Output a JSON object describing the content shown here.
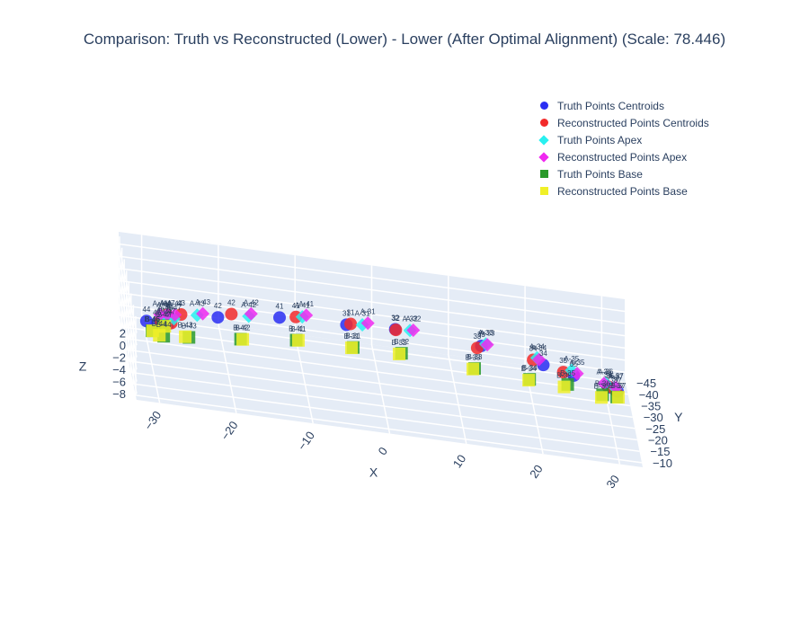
{
  "title": "Comparison: Truth vs Reconstructed (Lower) - Lower (After Optimal Alignment) (Scale: 78.446)",
  "chart_data": {
    "type": "scatter3d",
    "axes": {
      "x": {
        "label": "X",
        "ticks": [
          "−30",
          "−20",
          "−10",
          "0",
          "10",
          "20",
          "30"
        ]
      },
      "y": {
        "label": "Y",
        "ticks": [
          "−10",
          "−15",
          "−20",
          "−25",
          "−30",
          "−35",
          "−40",
          "−45"
        ]
      },
      "z": {
        "label": "Z",
        "ticks": [
          "2",
          "0",
          "−2",
          "−4",
          "−6",
          "−8"
        ]
      }
    },
    "grid": true,
    "legend_position": "top-right",
    "series": [
      {
        "name": "Truth Points Centroids",
        "marker": "circle",
        "color": "#2a2ef2",
        "points": [
          {
            "label": "47",
            "x": -28.6,
            "y": -12.6,
            "z": 2.5
          },
          {
            "label": "46",
            "x": -29.9,
            "y": -15.5,
            "z": 1.2
          },
          {
            "label": "44",
            "x": -31.0,
            "y": -20.0,
            "z": -0.2
          },
          {
            "label": "43",
            "x": -27.6,
            "y": -26.4,
            "z": -1.5
          },
          {
            "label": "42",
            "x": -21.0,
            "y": -31.4,
            "z": -2.2
          },
          {
            "label": "41",
            "x": -12.7,
            "y": -35.6,
            "z": -2.4
          },
          {
            "label": "31",
            "x": -3.9,
            "y": -36.9,
            "z": -2.6
          },
          {
            "label": "32",
            "x": 2.5,
            "y": -37.5,
            "z": -2.5
          },
          {
            "label": "33",
            "x": 13.5,
            "y": -33.8,
            "z": -2.0
          },
          {
            "label": "34",
            "x": 21.2,
            "y": -27.3,
            "z": -1.4
          },
          {
            "label": "35",
            "x": 24.9,
            "y": -22.7,
            "z": -0.8
          },
          {
            "label": "36",
            "x": 29.2,
            "y": -15.7,
            "z": 0.6
          },
          {
            "label": "37",
            "x": 30.0,
            "y": -12.6,
            "z": 1.2
          }
        ]
      },
      {
        "name": "Reconstructed Points Centroids",
        "marker": "circle",
        "color": "#f22a2a",
        "points": [
          {
            "label": "47",
            "x": -28.2,
            "y": -12.6,
            "z": 2.7
          },
          {
            "label": "46",
            "x": -29.4,
            "y": -15.8,
            "z": 1.6
          },
          {
            "label": "44",
            "x": -28.2,
            "y": -22.4,
            "z": 0.4
          },
          {
            "label": "43",
            "x": -26.0,
            "y": -28.0,
            "z": -1.3
          },
          {
            "label": "42",
            "x": -19.1,
            "y": -33.7,
            "z": -2.2
          },
          {
            "label": "41",
            "x": -10.5,
            "y": -36.8,
            "z": -2.4
          },
          {
            "label": "31",
            "x": -3.3,
            "y": -37.8,
            "z": -2.7
          },
          {
            "label": "32",
            "x": 2.6,
            "y": -37.8,
            "z": -2.7
          },
          {
            "label": "33",
            "x": 13.0,
            "y": -34.3,
            "z": -2.6
          },
          {
            "label": "34",
            "x": 20.0,
            "y": -29.5,
            "z": -1.6
          },
          {
            "label": "35",
            "x": 23.6,
            "y": -23.9,
            "z": -0.9
          },
          {
            "label": "36",
            "x": 29.0,
            "y": -16.5,
            "z": 0.4
          },
          {
            "label": "37",
            "x": 29.8,
            "y": -13.3,
            "z": 1.1
          }
        ]
      },
      {
        "name": "Truth Points Apex",
        "marker": "diamond",
        "color": "#28f0f0",
        "points": [
          {
            "label": "A-47",
            "x": -27.9,
            "y": -12.2,
            "z": 3.6
          },
          {
            "label": "A-46",
            "x": -28.9,
            "y": -14.2,
            "z": 2.6
          },
          {
            "label": "A-44",
            "x": -28.6,
            "y": -21.0,
            "z": 0.6
          },
          {
            "label": "A-43",
            "x": -24.0,
            "y": -26.5,
            "z": -0.5
          },
          {
            "label": "A-42",
            "x": -17.0,
            "y": -31.0,
            "z": -1.2
          },
          {
            "label": "A-41",
            "x": -9.8,
            "y": -34.5,
            "z": -1.4
          },
          {
            "label": "A-31",
            "x": -1.9,
            "y": -35.6,
            "z": -1.8
          },
          {
            "label": "A-32",
            "x": 4.3,
            "y": -35.4,
            "z": -1.6
          },
          {
            "label": "A-33",
            "x": 13.9,
            "y": -30.8,
            "z": -0.5
          },
          {
            "label": "A-34",
            "x": 20.3,
            "y": -26.0,
            "z": 0.1
          },
          {
            "label": "A-35",
            "x": 24.5,
            "y": -21.1,
            "z": 0.6
          },
          {
            "label": "A-36",
            "x": 28.6,
            "y": -15.1,
            "z": 1.4
          },
          {
            "label": "A-37",
            "x": 29.7,
            "y": -12.0,
            "z": 1.9
          }
        ]
      },
      {
        "name": "Reconstructed Points Apex",
        "marker": "diamond",
        "color": "#f028f0",
        "points": [
          {
            "label": "A-47",
            "x": -28.7,
            "y": -13.0,
            "z": 3.9
          },
          {
            "label": "A-46",
            "x": -29.5,
            "y": -15.4,
            "z": 2.8
          },
          {
            "label": "A-44",
            "x": -27.2,
            "y": -21.5,
            "z": 0.9
          },
          {
            "label": "A-43",
            "x": -23.2,
            "y": -27.5,
            "z": -0.5
          },
          {
            "label": "A-42",
            "x": -16.6,
            "y": -32.5,
            "z": -1.3
          },
          {
            "label": "A-41",
            "x": -9.2,
            "y": -36.0,
            "z": -1.6
          },
          {
            "label": "A-31",
            "x": -1.1,
            "y": -37.0,
            "z": -1.9
          },
          {
            "label": "A-32",
            "x": 4.8,
            "y": -36.5,
            "z": -1.9
          },
          {
            "label": "A-33",
            "x": 14.2,
            "y": -32.5,
            "z": -1.2
          },
          {
            "label": "A-34",
            "x": 20.6,
            "y": -26.5,
            "z": -0.3
          },
          {
            "label": "A-35",
            "x": 25.2,
            "y": -20.5,
            "z": 0.4
          },
          {
            "label": "A-36",
            "x": 28.4,
            "y": -15.5,
            "z": 1.2
          },
          {
            "label": "A-37",
            "x": 29.8,
            "y": -12.8,
            "z": 1.8
          }
        ]
      },
      {
        "name": "Truth Points Base",
        "marker": "square",
        "color": "#2a9a2a",
        "points": [
          {
            "label": "B-47",
            "x": -29.2,
            "y": -13.9,
            "z": 1.6
          },
          {
            "label": "B-46",
            "x": -30.5,
            "y": -16.2,
            "z": -0.3
          },
          {
            "label": "B-44",
            "x": -28.6,
            "y": -22.4,
            "z": -3.2
          },
          {
            "label": "B-43",
            "x": -25.0,
            "y": -27.5,
            "z": -4.7
          },
          {
            "label": "B-42",
            "x": -18.0,
            "y": -32.0,
            "z": -5.5
          },
          {
            "label": "B-41",
            "x": -10.5,
            "y": -36.0,
            "z": -5.9
          },
          {
            "label": "B-31",
            "x": -3.0,
            "y": -37.2,
            "z": -6.3
          },
          {
            "label": "B-32",
            "x": 3.3,
            "y": -37.2,
            "z": -6.2
          },
          {
            "label": "B-33",
            "x": 12.7,
            "y": -35.0,
            "z": -6.3
          },
          {
            "label": "B-34",
            "x": 19.6,
            "y": -30.4,
            "z": -5.2
          },
          {
            "label": "B-35",
            "x": 24.3,
            "y": -26.0,
            "z": -3.6
          },
          {
            "label": "B-36",
            "x": 28.4,
            "y": -18.5,
            "z": -1.8
          },
          {
            "label": "B-37",
            "x": 30.0,
            "y": -14.5,
            "z": -0.4
          }
        ]
      },
      {
        "name": "Reconstructed Points Base",
        "marker": "square",
        "color": "#f0f028",
        "points": [
          {
            "label": "B-47",
            "x": -29.0,
            "y": -13.5,
            "z": 1.7
          },
          {
            "label": "B-46",
            "x": -30.4,
            "y": -16.5,
            "z": -0.4
          },
          {
            "label": "B-44",
            "x": -29.2,
            "y": -22.0,
            "z": -3.0
          },
          {
            "label": "B-43",
            "x": -25.5,
            "y": -27.3,
            "z": -4.6
          },
          {
            "label": "B-42",
            "x": -17.7,
            "y": -32.3,
            "z": -5.6
          },
          {
            "label": "B-41",
            "x": -10.2,
            "y": -36.3,
            "z": -6.0
          },
          {
            "label": "B-31",
            "x": -3.2,
            "y": -37.5,
            "z": -6.5
          },
          {
            "label": "B-32",
            "x": 3.0,
            "y": -37.3,
            "z": -6.4
          },
          {
            "label": "B-33",
            "x": 12.5,
            "y": -35.5,
            "z": -6.6
          },
          {
            "label": "B-34",
            "x": 19.5,
            "y": -30.8,
            "z": -5.5
          },
          {
            "label": "B-35",
            "x": 23.8,
            "y": -25.5,
            "z": -3.9
          },
          {
            "label": "B-36",
            "x": 28.2,
            "y": -17.8,
            "z": -2.0
          },
          {
            "label": "B-37",
            "x": 30.2,
            "y": -14.2,
            "z": -0.3
          }
        ]
      }
    ]
  }
}
